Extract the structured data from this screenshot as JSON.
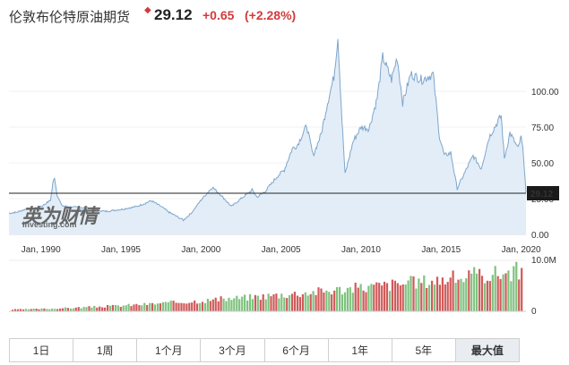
{
  "header": {
    "title": "伦敦布伦特原油期货",
    "price": "29.12",
    "change": "+0.65",
    "change_pct": "(+2.28%)"
  },
  "logo": {
    "cn": "英为财情",
    "en": "Investing.com"
  },
  "range_buttons": [
    "1日",
    "1周",
    "1个月",
    "3个月",
    "6个月",
    "1年",
    "5年",
    "最大值"
  ],
  "active_range": "最大值",
  "colors": {
    "line": "#7ea6cc",
    "area": "#e3edf7",
    "up": "#7fc27f",
    "down": "#d05a5a",
    "accent_red": "#d23b3b"
  },
  "chart_data": {
    "type": "area",
    "price_axis": {
      "ticks": [
        "100.00",
        "75.00",
        "50.00",
        "25.00",
        "0.00"
      ],
      "ylim": [
        0,
        140
      ],
      "current_label": "29.12"
    },
    "volume_axis": {
      "ticks": [
        "10.0M",
        "0"
      ]
    },
    "x_ticks": [
      "Jan, 1990",
      "Jan, 1995",
      "Jan, 2000",
      "Jan, 2005",
      "Jan, 2010",
      "Jan, 2015",
      "Jan, 2020"
    ],
    "xlim": [
      1988.0,
      2020.3
    ],
    "price_series": [
      [
        1988.0,
        14.8
      ],
      [
        1988.5,
        15.5
      ],
      [
        1989.0,
        17.5
      ],
      [
        1989.6,
        18.5
      ],
      [
        1990.1,
        20.0
      ],
      [
        1990.6,
        24.0
      ],
      [
        1990.75,
        36.0
      ],
      [
        1990.85,
        40.0
      ],
      [
        1991.0,
        28.0
      ],
      [
        1991.3,
        20.0
      ],
      [
        1992.0,
        19.0
      ],
      [
        1993.0,
        18.5
      ],
      [
        1994.0,
        16.0
      ],
      [
        1995.0,
        17.5
      ],
      [
        1996.0,
        19.5
      ],
      [
        1996.9,
        23.5
      ],
      [
        1997.5,
        19.5
      ],
      [
        1998.0,
        15.5
      ],
      [
        1998.9,
        10.0
      ],
      [
        1999.4,
        15.0
      ],
      [
        2000.0,
        24.0
      ],
      [
        2000.7,
        33.0
      ],
      [
        2001.2,
        28.0
      ],
      [
        2001.9,
        19.5
      ],
      [
        2002.5,
        25.0
      ],
      [
        2003.2,
        31.0
      ],
      [
        2003.5,
        26.0
      ],
      [
        2004.0,
        30.0
      ],
      [
        2004.8,
        41.0
      ],
      [
        2005.2,
        45.0
      ],
      [
        2005.7,
        60.0
      ],
      [
        2006.0,
        62.0
      ],
      [
        2006.6,
        76.0
      ],
      [
        2007.0,
        55.0
      ],
      [
        2007.5,
        70.0
      ],
      [
        2007.9,
        92.0
      ],
      [
        2008.3,
        110.0
      ],
      [
        2008.55,
        138.0
      ],
      [
        2008.8,
        80.0
      ],
      [
        2009.0,
        42.0
      ],
      [
        2009.5,
        65.0
      ],
      [
        2010.0,
        75.0
      ],
      [
        2010.5,
        74.0
      ],
      [
        2011.0,
        95.0
      ],
      [
        2011.35,
        124.0
      ],
      [
        2011.9,
        108.0
      ],
      [
        2012.25,
        124.0
      ],
      [
        2012.6,
        92.0
      ],
      [
        2013.1,
        112.0
      ],
      [
        2013.8,
        108.0
      ],
      [
        2014.5,
        112.0
      ],
      [
        2014.9,
        68.0
      ],
      [
        2015.2,
        55.0
      ],
      [
        2015.6,
        57.0
      ],
      [
        2016.0,
        32.0
      ],
      [
        2016.6,
        46.0
      ],
      [
        2017.0,
        55.0
      ],
      [
        2017.5,
        46.0
      ],
      [
        2018.0,
        68.0
      ],
      [
        2018.75,
        83.0
      ],
      [
        2018.95,
        53.0
      ],
      [
        2019.3,
        71.0
      ],
      [
        2019.8,
        60.0
      ],
      [
        2020.0,
        68.0
      ],
      [
        2020.15,
        55.0
      ],
      [
        2020.3,
        29.12
      ]
    ],
    "volume_note": "monthly volume bars rising from near 0 (1988) to ~7M (2019)"
  }
}
